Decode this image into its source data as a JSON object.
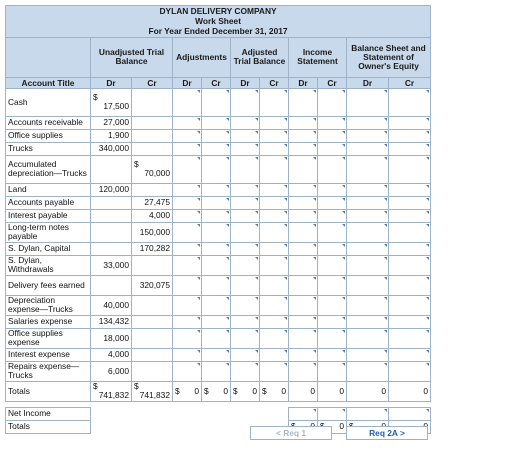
{
  "title": {
    "company": "DYLAN DELIVERY COMPANY",
    "report": "Work Sheet",
    "period": "For Year Ended December 31, 2017"
  },
  "groups": {
    "unadjusted": "Unadjusted Trial Balance",
    "adjustments": "Adjustments",
    "adjusted": "Adjusted Trial Balance",
    "income": "Income Statement",
    "balance": "Balance Sheet and Statement of Owner's Equity"
  },
  "columns": {
    "account_title": "Account Title",
    "dr": "Dr",
    "cr": "Cr"
  },
  "accounts": [
    {
      "name": "Cash",
      "dr_prefix": "$",
      "dr": "17,500",
      "cr": ""
    },
    {
      "name": "Accounts receivable",
      "dr_prefix": "",
      "dr": "27,000",
      "cr": ""
    },
    {
      "name": "Office supplies",
      "dr_prefix": "",
      "dr": "1,900",
      "cr": ""
    },
    {
      "name": "Trucks",
      "dr_prefix": "",
      "dr": "340,000",
      "cr": ""
    },
    {
      "name": "Accumulated depreciation—Trucks",
      "dr_prefix": "",
      "dr": "",
      "cr_prefix": "$",
      "cr": "70,000"
    },
    {
      "name": "Land",
      "dr_prefix": "",
      "dr": "120,000",
      "cr": ""
    },
    {
      "name": "Accounts payable",
      "dr_prefix": "",
      "dr": "",
      "cr": "27,475"
    },
    {
      "name": "Interest payable",
      "dr_prefix": "",
      "dr": "",
      "cr": "4,000"
    },
    {
      "name": "Long-term notes payable",
      "dr_prefix": "",
      "dr": "",
      "cr": "150,000"
    },
    {
      "name": "S. Dylan, Capital",
      "dr_prefix": "",
      "dr": "",
      "cr": "170,282"
    },
    {
      "name": "S. Dylan, Withdrawals",
      "dr_prefix": "",
      "dr": "33,000",
      "cr": ""
    },
    {
      "name": "Delivery fees earned",
      "dr_prefix": "",
      "dr": "",
      "cr": "320,075"
    },
    {
      "name": "Depreciation expense—Trucks",
      "dr_prefix": "",
      "dr": "40,000",
      "cr": ""
    },
    {
      "name": "Salaries expense",
      "dr_prefix": "",
      "dr": "134,432",
      "cr": ""
    },
    {
      "name": "Office supplies expense",
      "dr_prefix": "",
      "dr": "18,000",
      "cr": ""
    },
    {
      "name": "Interest expense",
      "dr_prefix": "",
      "dr": "4,000",
      "cr": ""
    },
    {
      "name": "Repairs expense—Trucks",
      "dr_prefix": "",
      "dr": "6,000",
      "cr": ""
    }
  ],
  "totals": {
    "label": "Totals",
    "currency": "$",
    "unadjusted_dr": "741,832",
    "unadjusted_cr": "741,832",
    "adj_dr": "0",
    "adj_cr": "0",
    "adjusted_dr": "0",
    "adjusted_cr": "0",
    "income_dr": "0",
    "income_cr": "0",
    "balance_dr": "0",
    "balance_cr": "0"
  },
  "net_income": {
    "label": "Net Income"
  },
  "final_totals": {
    "label": "Totals",
    "currency": "$",
    "income_dr": "0",
    "income_cr": "0",
    "balance_dr": "0",
    "balance_cr": "0"
  },
  "nav": {
    "prev_label": "< Req 1",
    "next_label": "Req 2A >"
  }
}
